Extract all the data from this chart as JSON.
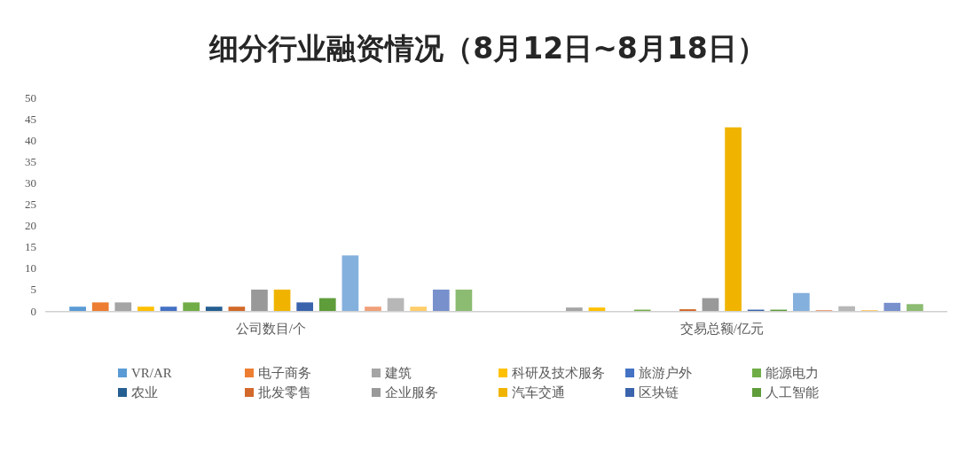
{
  "chart_data": {
    "type": "bar",
    "title": "细分行业融资情况（8月12日~8月18日）",
    "categories": [
      "公司数目/个",
      "交易总额/亿元"
    ],
    "ylim": [
      0,
      50
    ],
    "yticks": [
      0,
      5,
      10,
      15,
      20,
      25,
      30,
      35,
      40,
      45,
      50
    ],
    "grid": false,
    "legend": "bottom",
    "series": [
      {
        "name": "VR/AR",
        "color": "#5b9bd5",
        "values": [
          1,
          0
        ]
      },
      {
        "name": "电子商务",
        "color": "#ed7d31",
        "values": [
          2,
          0
        ]
      },
      {
        "name": "建筑",
        "color": "#a5a5a5",
        "values": [
          2,
          0.8
        ]
      },
      {
        "name": "科研及技术服务",
        "color": "#ffc000",
        "values": [
          1,
          0.8
        ]
      },
      {
        "name": "旅游户外",
        "color": "#4472c4",
        "values": [
          1,
          0
        ]
      },
      {
        "name": "能源电力",
        "color": "#70ad47",
        "values": [
          2,
          0.3
        ]
      },
      {
        "name": "农业",
        "color": "#255e91",
        "values": [
          1,
          0
        ]
      },
      {
        "name": "批发零售",
        "color": "#d2692a",
        "values": [
          1,
          0.4
        ]
      },
      {
        "name": "企业服务",
        "color": "#999999",
        "values": [
          5,
          3
        ]
      },
      {
        "name": "汽车交通",
        "color": "#f0b400",
        "values": [
          5,
          43
        ]
      },
      {
        "name": "区块链",
        "color": "#3b64ad",
        "values": [
          2,
          0.3
        ]
      },
      {
        "name": "人工智能",
        "color": "#5f9c3a",
        "values": [
          3,
          0.3
        ]
      },
      {
        "color": "#84b0dd",
        "values": [
          13,
          4.2
        ]
      },
      {
        "color": "#f1a07a",
        "values": [
          1,
          0.2
        ]
      },
      {
        "color": "#b7b7b7",
        "values": [
          3,
          1.1
        ]
      },
      {
        "color": "#ffcd6a",
        "values": [
          1,
          0.2
        ]
      },
      {
        "color": "#7890cc",
        "values": [
          5,
          1.9
        ]
      },
      {
        "color": "#8cbb72",
        "values": [
          5,
          1.6
        ]
      }
    ]
  }
}
